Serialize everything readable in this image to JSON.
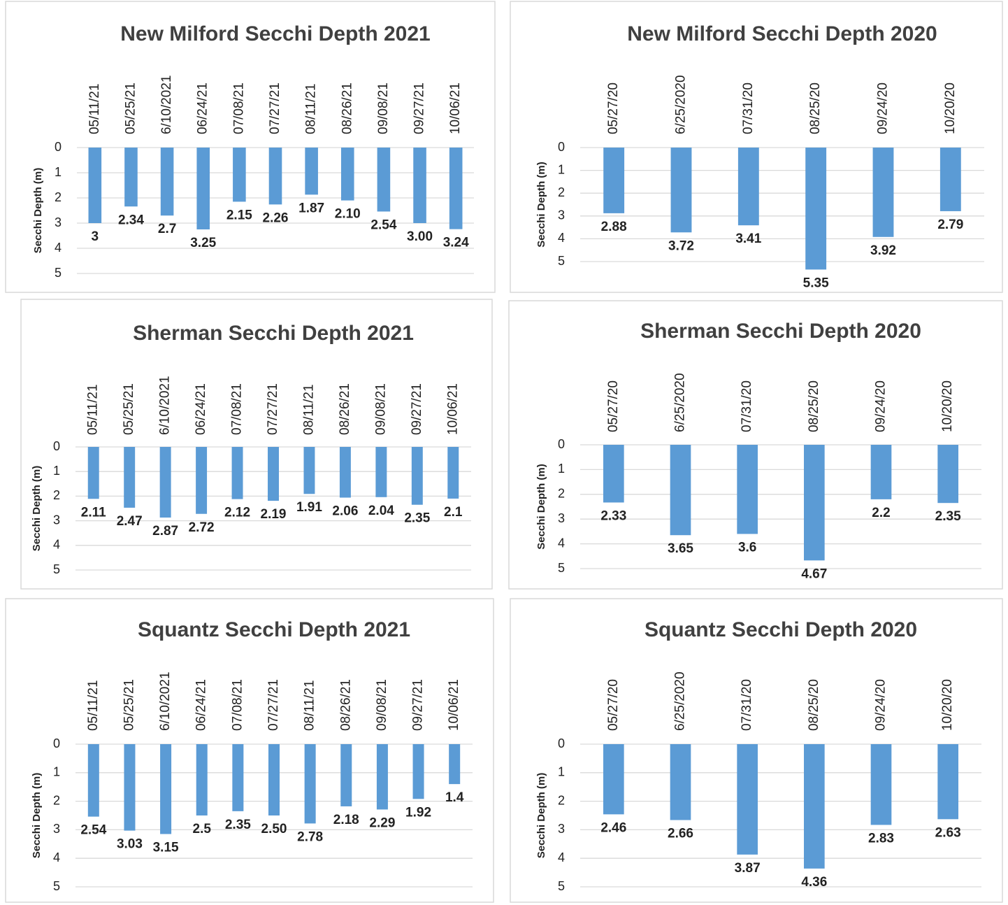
{
  "chart_data": [
    {
      "type": "bar",
      "title": "New Milford Secchi Depth 2021",
      "y_label": "Secchi Depth (m)",
      "categories": [
        "05/11/21",
        "05/25/21",
        "6/10/2021",
        "06/24/21",
        "07/08/21",
        "07/27/21",
        "08/11/21",
        "08/26/21",
        "09/08/21",
        "09/27/21",
        "10/06/21"
      ],
      "values": [
        3,
        2.34,
        2.7,
        3.25,
        2.15,
        2.26,
        1.87,
        2.1,
        2.54,
        3,
        3.24
      ],
      "value_labels": [
        "3",
        "2.34",
        "2.7",
        "3.25",
        "2.15",
        "2.26",
        "1.87",
        "2.10",
        "2.54",
        "3.00",
        "3.24"
      ],
      "color": "#5b9bd5",
      "ylim": [
        0,
        5
      ],
      "yticks": [
        0,
        1,
        2,
        3,
        4,
        5
      ],
      "y_inverted": true,
      "grid": true
    },
    {
      "type": "bar",
      "title": "New Milford Secchi Depth 2020",
      "y_label": "Secchi Depth (m)",
      "categories": [
        "05/27/20",
        "6/25/2020",
        "07/31/20",
        "08/25/20",
        "09/24/20",
        "10/20/20"
      ],
      "values": [
        2.88,
        3.72,
        3.41,
        5.35,
        3.92,
        2.79
      ],
      "color": "#5b9bd5",
      "ylim": [
        0,
        5
      ],
      "yticks": [
        0,
        1,
        2,
        3,
        4,
        5
      ],
      "y_inverted": true,
      "grid": true
    },
    {
      "type": "bar",
      "title": "Sherman Secchi Depth 2021",
      "y_label": "Secchi Depth (m)",
      "categories": [
        "05/11/21",
        "05/25/21",
        "6/10/2021",
        "06/24/21",
        "07/08/21",
        "07/27/21",
        "08/11/21",
        "08/26/21",
        "09/08/21",
        "09/27/21",
        "10/06/21"
      ],
      "values": [
        2.11,
        2.47,
        2.87,
        2.72,
        2.12,
        2.19,
        1.91,
        2.06,
        2.04,
        2.35,
        2.1
      ],
      "color": "#5b9bd5",
      "ylim": [
        0,
        5
      ],
      "yticks": [
        0,
        1,
        2,
        3,
        4,
        5
      ],
      "y_inverted": true,
      "grid": true
    },
    {
      "type": "bar",
      "title": "Sherman Secchi Depth 2020",
      "y_label": "Secchi Depth (m)",
      "categories": [
        "05/27/20",
        "6/25/2020",
        "07/31/20",
        "08/25/20",
        "09/24/20",
        "10/20/20"
      ],
      "values": [
        2.33,
        3.65,
        3.6,
        4.67,
        2.2,
        2.35
      ],
      "color": "#5b9bd5",
      "ylim": [
        0,
        5
      ],
      "yticks": [
        0,
        1,
        2,
        3,
        4,
        5
      ],
      "y_inverted": true,
      "grid": true
    },
    {
      "type": "bar",
      "title": "Squantz Secchi Depth 2021",
      "y_label": "Secchi Depth (m)",
      "categories": [
        "05/11/21",
        "05/25/21",
        "6/10/2021",
        "06/24/21",
        "07/08/21",
        "07/27/21",
        "08/11/21",
        "08/26/21",
        "09/08/21",
        "09/27/21",
        "10/06/21"
      ],
      "values": [
        2.54,
        3.03,
        3.15,
        2.5,
        2.35,
        2.5,
        2.78,
        2.18,
        2.29,
        1.92,
        1.4
      ],
      "value_labels": [
        "2.54",
        "3.03",
        "3.15",
        "2.5",
        "2.35",
        "2.50",
        "2.78",
        "2.18",
        "2.29",
        "1.92",
        "1.4"
      ],
      "color": "#5b9bd5",
      "ylim": [
        0,
        5
      ],
      "yticks": [
        0,
        1,
        2,
        3,
        4,
        5
      ],
      "y_inverted": true,
      "grid": true
    },
    {
      "type": "bar",
      "title": "Squantz Secchi Depth 2020",
      "y_label": "Secchi Depth (m)",
      "categories": [
        "05/27/20",
        "6/25/2020",
        "07/31/20",
        "08/25/20",
        "09/24/20",
        "10/20/20"
      ],
      "values": [
        2.46,
        2.66,
        3.87,
        4.36,
        2.83,
        2.63
      ],
      "color": "#5b9bd5",
      "ylim": [
        0,
        5
      ],
      "yticks": [
        0,
        1,
        2,
        3,
        4,
        5
      ],
      "y_inverted": true,
      "grid": true
    }
  ]
}
